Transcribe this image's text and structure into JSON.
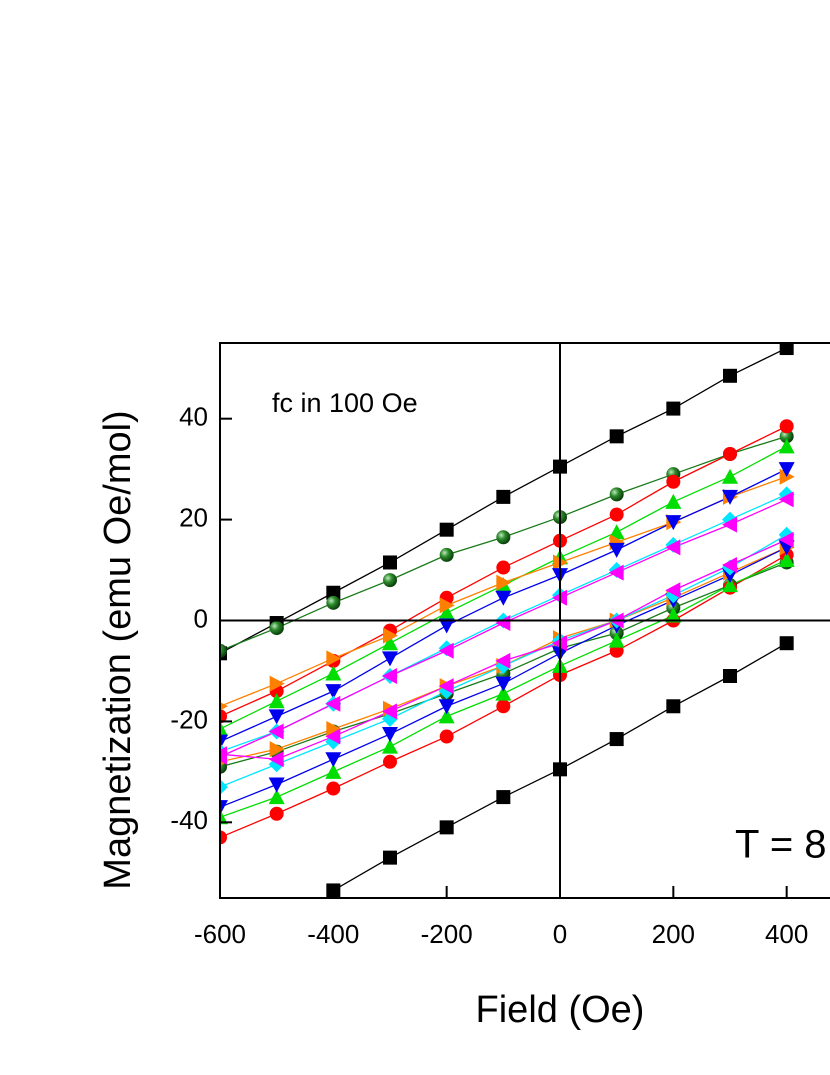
{
  "chart_data": {
    "type": "line",
    "xlabel": "Field (Oe)",
    "ylabel": "Magnetization (emu Oe/mol)",
    "annotations": [
      "fc in 100 Oe",
      "T = 8"
    ],
    "x": [
      -600,
      -500,
      -400,
      -300,
      -200,
      -100,
      0,
      100,
      200,
      300,
      400
    ],
    "xlim": [
      -600,
      600
    ],
    "xticks": [
      -600,
      -400,
      -200,
      0,
      200,
      400
    ],
    "ylim": [
      -55,
      55
    ],
    "yticks": [
      -40,
      -20,
      0,
      20,
      40
    ],
    "series": [
      {
        "color": "#000000",
        "marker": "square",
        "values": [
          -6.5,
          -0.5,
          5.5,
          11.5,
          18,
          24.5,
          30.5,
          36.5,
          42,
          48.5,
          54
        ]
      },
      {
        "color": "#000000",
        "marker": "square",
        "values": [
          null,
          null,
          -53.5,
          -47,
          -41,
          -35,
          -29.5,
          -23.5,
          -17,
          -11,
          -4.5
        ]
      },
      {
        "color": "#1a7a1a",
        "marker": "sphere",
        "values": [
          -6,
          -1.5,
          3.5,
          8,
          13,
          16.5,
          20.5,
          25,
          29,
          33,
          36.5
        ]
      },
      {
        "color": "#1a7a1a",
        "marker": "sphere",
        "values": [
          -29,
          -26,
          -22,
          -18.5,
          -14.5,
          -10.5,
          -5.5,
          -2.5,
          2.5,
          7,
          11.5
        ]
      },
      {
        "color": "#ff0000",
        "marker": "circle",
        "values": [
          -19,
          -14,
          -8,
          -2,
          4.5,
          10.5,
          15.8,
          21,
          27.5,
          33,
          38.5
        ]
      },
      {
        "color": "#ff0000",
        "marker": "circle",
        "values": [
          -43,
          -38.3,
          -33.3,
          -28,
          -23,
          -17,
          -10.8,
          -6,
          0,
          6.5,
          13
        ]
      },
      {
        "color": "#00dd00",
        "marker": "triangle-up",
        "values": [
          -21.5,
          -16,
          -10.5,
          -4.5,
          1.5,
          7,
          12.5,
          17.5,
          23.5,
          28.5,
          34.5
        ]
      },
      {
        "color": "#00dd00",
        "marker": "triangle-up",
        "values": [
          -39,
          -35,
          -30,
          -25,
          -19,
          -14.5,
          -9,
          -4,
          1,
          7,
          12
        ]
      },
      {
        "color": "#ff8000",
        "marker": "triangle-right",
        "values": [
          -17,
          -12.5,
          -7.5,
          -3,
          3,
          7.5,
          11.5,
          15.5,
          19.5,
          24.5,
          28.5
        ]
      },
      {
        "color": "#ff8000",
        "marker": "triangle-right",
        "values": [
          -28,
          -25.5,
          -21.5,
          -17.5,
          -13,
          -9,
          -3.5,
          0,
          4.5,
          9.5,
          14.5
        ]
      },
      {
        "color": "#0000ee",
        "marker": "triangle-down",
        "values": [
          -24,
          -19,
          -14,
          -7.5,
          -1,
          4.5,
          9,
          14,
          19.5,
          24.5,
          30
        ]
      },
      {
        "color": "#0000ee",
        "marker": "triangle-down",
        "values": [
          -37,
          -32.5,
          -27.5,
          -22.5,
          -17,
          -12.5,
          -6.5,
          -1,
          4,
          9,
          14.5
        ]
      },
      {
        "color": "#00e5ff",
        "marker": "diamond",
        "values": [
          -26,
          -22,
          -16.5,
          -11,
          -5.5,
          0,
          5,
          10,
          15,
          20,
          25
        ]
      },
      {
        "color": "#00e5ff",
        "marker": "diamond",
        "values": [
          -33,
          -28.5,
          -24,
          -19.5,
          -14,
          -9,
          -4,
          0,
          5,
          10.5,
          17
        ]
      },
      {
        "color": "#ff00ff",
        "marker": "triangle-left",
        "values": [
          -27,
          -22,
          -16.5,
          -11,
          -6,
          -0.5,
          4.5,
          9.5,
          14.5,
          19,
          24
        ]
      },
      {
        "color": "#ff00ff",
        "marker": "triangle-left",
        "values": [
          -26.5,
          -27.5,
          -23,
          -18,
          -13,
          -8,
          -4.5,
          0,
          6,
          11,
          16
        ]
      }
    ]
  }
}
